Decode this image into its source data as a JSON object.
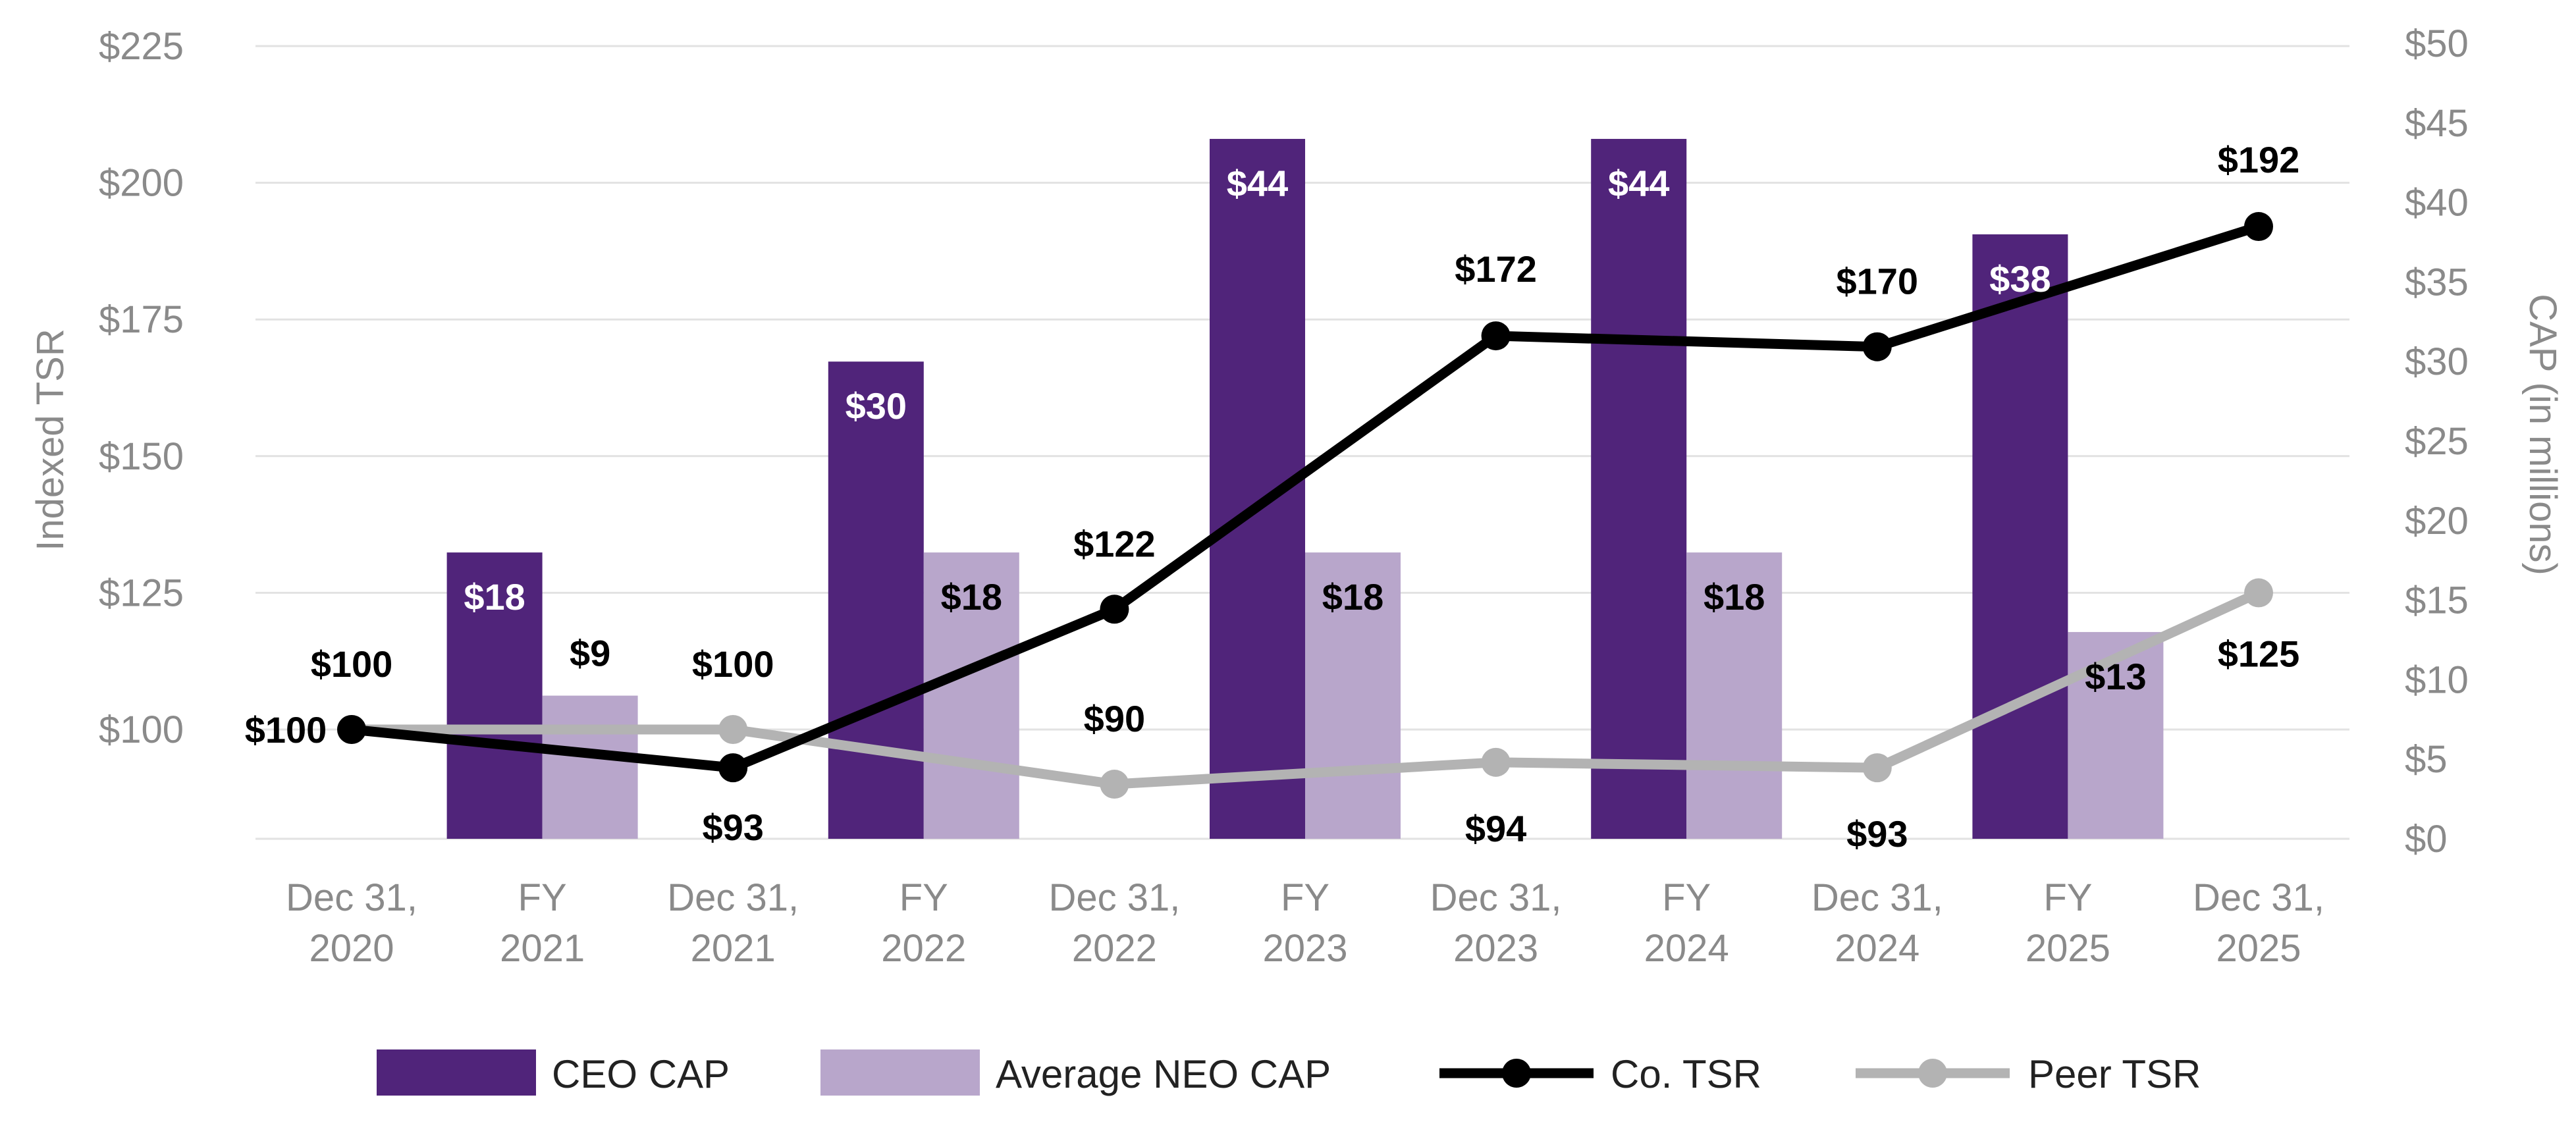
{
  "colors": {
    "ceo_cap": "#50247a",
    "neo_cap": "#b8a6cb",
    "co_tsr": "#000000",
    "peer_tsr": "#b3b3b3",
    "grid": "#e2e2e2",
    "axis_text": "#8a8a8a"
  },
  "chart_data": {
    "type": "bar",
    "title": "",
    "categories": [
      [
        "Dec 31,",
        "2020"
      ],
      [
        "FY",
        "2021"
      ],
      [
        "Dec 31,",
        "2021"
      ],
      [
        "FY",
        "2022"
      ],
      [
        "Dec 31,",
        "2022"
      ],
      [
        "FY",
        "2023"
      ],
      [
        "Dec 31,",
        "2023"
      ],
      [
        "FY",
        "2024"
      ],
      [
        "Dec 31,",
        "2024"
      ],
      [
        "FY",
        "2025"
      ],
      [
        "Dec 31,",
        "2025"
      ]
    ],
    "y_left": {
      "label": "Indexed TSR",
      "min": 80,
      "max": 225,
      "ticks": [
        100,
        125,
        150,
        175,
        200,
        225
      ],
      "tick_labels": [
        "$100",
        "$125",
        "$150",
        "$175",
        "$200",
        "$225"
      ]
    },
    "y_right": {
      "label": "CAP (in millions)",
      "min": 0,
      "max": 50,
      "ticks": [
        0,
        5,
        10,
        15,
        20,
        25,
        30,
        35,
        40,
        45,
        50
      ],
      "tick_labels": [
        "$0",
        "$5",
        "$10",
        "$15",
        "$20",
        "$25",
        "$30",
        "$35",
        "$40",
        "$45",
        "$50"
      ]
    },
    "bar_series": [
      {
        "name": "CEO CAP",
        "axis": "right",
        "category_index": [
          1,
          3,
          5,
          7,
          9
        ],
        "values": [
          18,
          30,
          44,
          44,
          38
        ],
        "labels": [
          "$18",
          "$30",
          "$44",
          "$44",
          "$38"
        ]
      },
      {
        "name": "Average NEO CAP",
        "axis": "right",
        "category_index": [
          1,
          3,
          5,
          7,
          9
        ],
        "values": [
          9,
          18,
          18,
          18,
          13
        ],
        "labels": [
          "$9",
          "$18",
          "$18",
          "$18",
          "$13"
        ]
      }
    ],
    "line_series": [
      {
        "name": "Co. TSR",
        "axis": "left",
        "category_index": [
          0,
          2,
          4,
          6,
          8,
          10
        ],
        "values": [
          100,
          93,
          122,
          172,
          170,
          192
        ],
        "labels": [
          "$100",
          "$93",
          "$122",
          "$172",
          "$170",
          "$192"
        ]
      },
      {
        "name": "Peer TSR",
        "axis": "left",
        "category_index": [
          0,
          2,
          4,
          6,
          8,
          10
        ],
        "values": [
          100,
          100,
          90,
          94,
          93,
          125
        ],
        "labels": [
          "$100",
          "$100",
          "$90",
          "$94",
          "$93",
          "$125"
        ]
      }
    ],
    "legend": {
      "position": "bottom",
      "entries": [
        "CEO CAP",
        "Average NEO CAP",
        "Co. TSR",
        "Peer TSR"
      ]
    }
  }
}
